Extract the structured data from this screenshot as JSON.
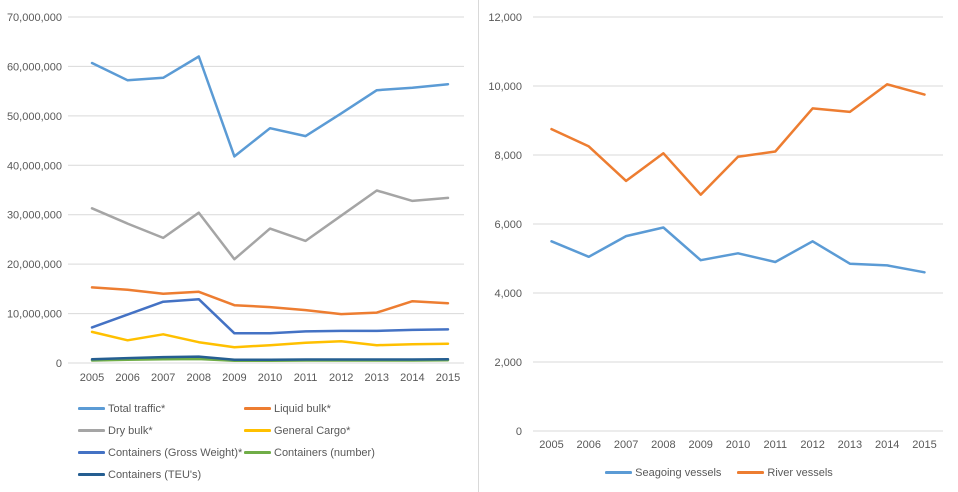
{
  "page": {
    "background": "#ffffff",
    "divider_color": "#d9d9d9",
    "grid_color": "#d9d9d9",
    "text_color": "#595959"
  },
  "chart_data": [
    {
      "type": "line",
      "title": "",
      "xlabel": "",
      "ylabel": "",
      "grid": true,
      "legend_position": "bottom-left",
      "legend_layout": "two-column",
      "categories": [
        "2005",
        "2006",
        "2007",
        "2008",
        "2009",
        "2010",
        "2011",
        "2012",
        "2013",
        "2014",
        "2015"
      ],
      "ylim": [
        0,
        70000000
      ],
      "ytick_step": 10000000,
      "ytick_labels": [
        "0",
        "10,000,000",
        "20,000,000",
        "30,000,000",
        "40,000,000",
        "50,000,000",
        "60,000,000",
        "70,000,000"
      ],
      "series": [
        {
          "name": "Total traffic*",
          "color": "#5B9BD5",
          "values": [
            60700000,
            57200000,
            57700000,
            62000000,
            41800000,
            47500000,
            45900000,
            50500000,
            55200000,
            55700000,
            56400000
          ]
        },
        {
          "name": "Liquid bulk*",
          "color": "#ED7D31",
          "values": [
            15300000,
            14800000,
            14000000,
            14400000,
            11700000,
            11300000,
            10700000,
            9900000,
            10200000,
            12500000,
            12100000
          ]
        },
        {
          "name": "Dry bulk*",
          "color": "#A5A5A5",
          "values": [
            31300000,
            28200000,
            25300000,
            30400000,
            21000000,
            27200000,
            24700000,
            29800000,
            34900000,
            32800000,
            33400000
          ]
        },
        {
          "name": "General Cargo*",
          "color": "#FFC000",
          "values": [
            6300000,
            4600000,
            5800000,
            4200000,
            3200000,
            3600000,
            4100000,
            4400000,
            3600000,
            3800000,
            3900000
          ]
        },
        {
          "name": "Containers (Gross Weight)*",
          "color": "#4472C4",
          "values": [
            7200000,
            9800000,
            12400000,
            12900000,
            6000000,
            6000000,
            6400000,
            6500000,
            6500000,
            6700000,
            6800000
          ]
        },
        {
          "name": "Containers (number)",
          "color": "#70AD47",
          "values": [
            500000,
            650000,
            750000,
            800000,
            450000,
            450000,
            500000,
            500000,
            500000,
            500000,
            550000
          ]
        },
        {
          "name": "Containers (TEU's)",
          "color": "#255E91",
          "values": [
            750000,
            1000000,
            1200000,
            1300000,
            650000,
            650000,
            700000,
            700000,
            700000,
            700000,
            750000
          ]
        }
      ]
    },
    {
      "type": "line",
      "title": "",
      "xlabel": "",
      "ylabel": "",
      "grid": true,
      "legend_position": "bottom-center",
      "legend_layout": "row",
      "categories": [
        "2005",
        "2006",
        "2007",
        "2008",
        "2009",
        "2010",
        "2011",
        "2012",
        "2013",
        "2014",
        "2015"
      ],
      "ylim": [
        0,
        12000
      ],
      "ytick_step": 2000,
      "ytick_labels": [
        "0",
        "2,000",
        "4,000",
        "6,000",
        "8,000",
        "10,000",
        "12,000"
      ],
      "series": [
        {
          "name": "Seagoing vessels",
          "color": "#5B9BD5",
          "values": [
            5500,
            5050,
            5650,
            5900,
            4950,
            5150,
            4900,
            5500,
            4850,
            4800,
            4600
          ]
        },
        {
          "name": "River vessels",
          "color": "#ED7D31",
          "values": [
            8750,
            8250,
            7250,
            8050,
            6850,
            7950,
            8100,
            9350,
            9250,
            10050,
            9750
          ]
        }
      ]
    }
  ]
}
